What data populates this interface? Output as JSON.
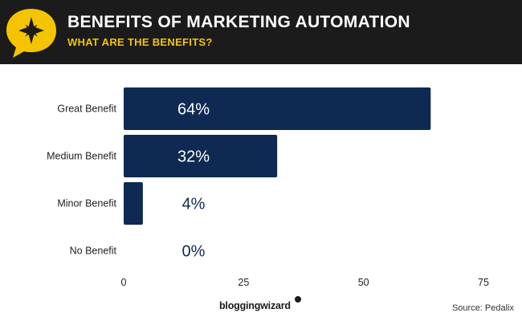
{
  "header": {
    "title": "BENEFITS OF MARKETING AUTOMATION",
    "subtitle": "WHAT ARE THE BENEFITS?",
    "logo_icon": "star-burst-icon"
  },
  "chart_data": {
    "type": "bar",
    "orientation": "horizontal",
    "categories": [
      "Great Benefit",
      "Medium Benefit",
      "Minor Benefit",
      "No Benefit"
    ],
    "values": [
      64,
      32,
      4,
      0
    ],
    "value_labels": [
      "64%",
      "32%",
      "4%",
      "0%"
    ],
    "xlim": [
      0,
      75
    ],
    "x_ticks": [
      "0",
      "25",
      "50",
      "75"
    ],
    "grid": false,
    "bar_color": "#0f2a52",
    "title": "",
    "xlabel": "",
    "ylabel": ""
  },
  "footer": {
    "brand": "bloggingwizard",
    "source": "Source: Pedalix"
  },
  "colors": {
    "header_bg": "#1b1b1b",
    "accent": "#f5c400",
    "bar": "#0f2a52",
    "label_on_bar": "#ffffff",
    "label_off_bar": "#0f2a52"
  }
}
